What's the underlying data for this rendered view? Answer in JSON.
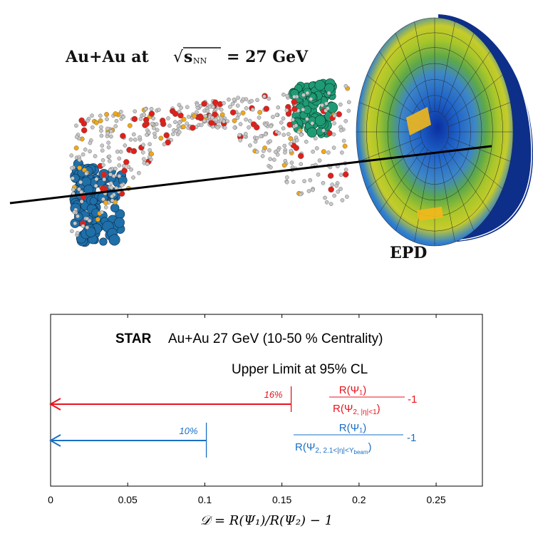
{
  "event_display": {
    "title": "Au+Au at",
    "energy_symbol": "s",
    "energy_subscript": "NN",
    "energy_value": "= 27 GeV",
    "detector_label": "EPD"
  },
  "chart_data": {
    "type": "bar",
    "title_bold": "STAR",
    "title": "Au+Au 27 GeV (10-50 % Centrality)",
    "subtitle": "Upper Limit at 95% CL",
    "xlabel": "𝒟 = R(Ψ₁)/R(Ψ₂) − 1",
    "xlim": [
      0,
      0.28
    ],
    "xticks": [
      0,
      0.05,
      0.1,
      0.15,
      0.2,
      0.25
    ],
    "xtick_labels": [
      "0",
      "0.05",
      "0.1",
      "0.15",
      "0.2",
      "0.25"
    ],
    "series": [
      {
        "value": 0.156,
        "label": "16%",
        "numerator": "R(Ψ₁)",
        "denominator_main": "R(Ψ",
        "denominator_sub": "2, |η|<1",
        "denominator_close": ")",
        "suffix": "-1",
        "color": "#e8141c"
      },
      {
        "value": 0.101,
        "label": "10%",
        "numerator": "R(Ψ₁)",
        "denominator_main": "R(Ψ",
        "denominator_sub": "2, 2.1<|η|<Y",
        "denominator_sub2": "beam",
        "denominator_close": ")",
        "suffix": "-1",
        "color": "#1a6fc4"
      }
    ]
  }
}
